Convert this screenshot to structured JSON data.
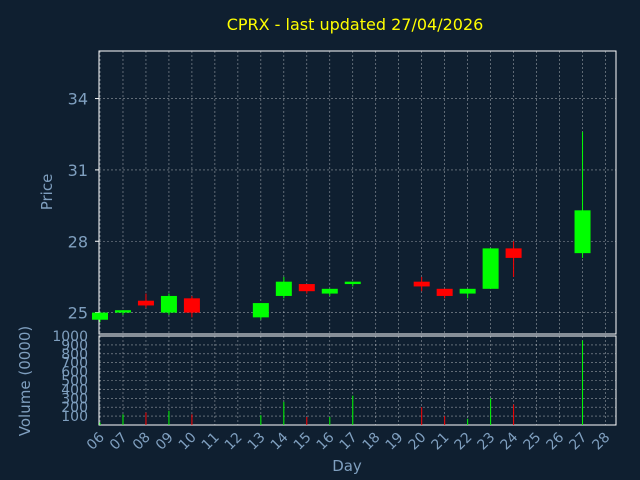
{
  "chart_data": {
    "type": "candlestick",
    "title": "CPRX - last updated 27/04/2026",
    "xlabel": "Day",
    "price_panel": {
      "ylabel": "Price",
      "yticks": [
        25,
        28,
        31,
        34
      ],
      "ylim": [
        24.1,
        36.0
      ],
      "grid": true
    },
    "volume_panel": {
      "ylabel": "Volume (0000)",
      "yticks": [
        100,
        200,
        300,
        400,
        500,
        600,
        700,
        800,
        900,
        1000
      ],
      "ylim": [
        0,
        1000
      ],
      "grid": true
    },
    "x_ticks": [
      "06",
      "07",
      "08",
      "09",
      "10",
      "11",
      "12",
      "13",
      "14",
      "15",
      "16",
      "17",
      "18",
      "19",
      "20",
      "21",
      "22",
      "23",
      "24",
      "25",
      "26",
      "27",
      "28"
    ],
    "colors": {
      "up": "#00ff00",
      "down": "#ff0000",
      "grid": "#ffffff",
      "background": "#0f1f30",
      "axis_text": "#7f9fbf",
      "title": "#ffff00"
    },
    "candles": [
      {
        "day": "06",
        "open": 24.7,
        "close": 25.0,
        "high": 25.0,
        "low": 24.6,
        "volume": 30
      },
      {
        "day": "07",
        "open": 25.0,
        "close": 25.1,
        "high": 25.1,
        "low": 24.9,
        "volume": 120
      },
      {
        "day": "08",
        "open": 25.5,
        "close": 25.3,
        "high": 25.8,
        "low": 25.2,
        "volume": 140
      },
      {
        "day": "09",
        "open": 25.0,
        "close": 25.7,
        "high": 25.8,
        "low": 24.9,
        "volume": 160
      },
      {
        "day": "10",
        "open": 25.6,
        "close": 25.0,
        "high": 25.7,
        "low": 24.8,
        "volume": 120
      },
      {
        "day": "13",
        "open": 24.8,
        "close": 25.4,
        "high": 25.4,
        "low": 24.7,
        "volume": 110
      },
      {
        "day": "14",
        "open": 25.7,
        "close": 26.3,
        "high": 26.5,
        "low": 25.6,
        "volume": 260
      },
      {
        "day": "15",
        "open": 26.2,
        "close": 25.9,
        "high": 26.2,
        "low": 25.8,
        "volume": 90
      },
      {
        "day": "16",
        "open": 25.8,
        "close": 26.0,
        "high": 26.0,
        "low": 25.7,
        "volume": 90
      },
      {
        "day": "17",
        "open": 26.2,
        "close": 26.3,
        "high": 26.3,
        "low": 26.1,
        "volume": 330
      },
      {
        "day": "20",
        "open": 26.3,
        "close": 26.1,
        "high": 26.5,
        "low": 25.9,
        "volume": 200
      },
      {
        "day": "21",
        "open": 26.0,
        "close": 25.7,
        "high": 26.0,
        "low": 25.6,
        "volume": 100
      },
      {
        "day": "22",
        "open": 25.8,
        "close": 26.0,
        "high": 26.0,
        "low": 25.6,
        "volume": 70
      },
      {
        "day": "23",
        "open": 26.0,
        "close": 27.7,
        "high": 27.7,
        "low": 26.0,
        "volume": 300
      },
      {
        "day": "24",
        "open": 27.7,
        "close": 27.3,
        "high": 28.0,
        "low": 26.5,
        "volume": 230
      },
      {
        "day": "27",
        "open": 27.5,
        "close": 29.3,
        "high": 32.6,
        "low": 27.3,
        "volume": 950
      }
    ]
  }
}
